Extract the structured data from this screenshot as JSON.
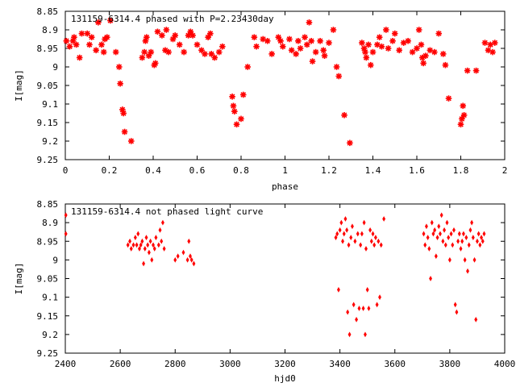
{
  "colors": {
    "points": "#ff0000",
    "axes": "#000000",
    "background": "#ffffff"
  },
  "chart_data": [
    {
      "type": "scatter",
      "title": "131159-6314.4 phased with P=2.23430day",
      "xlabel": "phase",
      "ylabel": "I[mag]",
      "xlim": [
        0,
        2
      ],
      "ylim": [
        8.85,
        9.25
      ],
      "y_inverted": true,
      "grid": false,
      "marker": "asterisk",
      "x_ticks": [
        0,
        0.2,
        0.4,
        0.6,
        0.8,
        1,
        1.2,
        1.4,
        1.6,
        1.8,
        2
      ],
      "x_tick_labels": [
        "0",
        "0.2",
        "0.4",
        "0.6",
        "0.8",
        "1",
        "1.2",
        "1.4",
        "1.6",
        "1.8",
        "2"
      ],
      "y_ticks": [
        8.85,
        8.9,
        8.95,
        9,
        9.05,
        9.1,
        9.15,
        9.2,
        9.25
      ],
      "y_tick_labels": [
        "8.85",
        "8.9",
        "8.95",
        "9",
        "9.05",
        "9.1",
        "9.15",
        "9.2",
        "9.25"
      ],
      "points": [
        [
          0.005,
          8.93
        ],
        [
          0.02,
          8.945
        ],
        [
          0.035,
          8.93
        ],
        [
          0.04,
          8.92
        ],
        [
          0.05,
          8.94
        ],
        [
          0.065,
          8.975
        ],
        [
          0.075,
          8.91
        ],
        [
          0.1,
          8.91
        ],
        [
          0.11,
          8.94
        ],
        [
          0.12,
          8.92
        ],
        [
          0.14,
          8.955
        ],
        [
          0.15,
          8.88
        ],
        [
          0.165,
          8.94
        ],
        [
          0.175,
          8.96
        ],
        [
          0.18,
          8.925
        ],
        [
          0.19,
          8.92
        ],
        [
          0.205,
          8.875
        ],
        [
          0.23,
          8.96
        ],
        [
          0.245,
          9.0
        ],
        [
          0.25,
          9.045
        ],
        [
          0.26,
          9.115
        ],
        [
          0.265,
          9.125
        ],
        [
          0.27,
          9.175
        ],
        [
          0.3,
          9.2
        ],
        [
          0.35,
          8.975
        ],
        [
          0.36,
          8.96
        ],
        [
          0.365,
          8.93
        ],
        [
          0.37,
          8.92
        ],
        [
          0.38,
          8.97
        ],
        [
          0.39,
          8.96
        ],
        [
          0.405,
          8.995
        ],
        [
          0.41,
          8.99
        ],
        [
          0.42,
          8.905
        ],
        [
          0.44,
          8.915
        ],
        [
          0.455,
          8.955
        ],
        [
          0.46,
          8.9
        ],
        [
          0.47,
          8.96
        ],
        [
          0.49,
          8.925
        ],
        [
          0.5,
          8.915
        ],
        [
          0.52,
          8.94
        ],
        [
          0.54,
          8.96
        ],
        [
          0.56,
          8.915
        ],
        [
          0.57,
          8.905
        ],
        [
          0.58,
          8.915
        ],
        [
          0.6,
          8.94
        ],
        [
          0.62,
          8.955
        ],
        [
          0.635,
          8.965
        ],
        [
          0.65,
          8.92
        ],
        [
          0.66,
          8.91
        ],
        [
          0.665,
          8.965
        ],
        [
          0.68,
          8.975
        ],
        [
          0.7,
          8.96
        ],
        [
          0.715,
          8.945
        ],
        [
          0.76,
          9.08
        ],
        [
          0.765,
          9.105
        ],
        [
          0.77,
          9.12
        ],
        [
          0.78,
          9.155
        ],
        [
          0.8,
          9.14
        ],
        [
          0.81,
          9.075
        ],
        [
          0.83,
          9.0
        ],
        [
          0.86,
          8.92
        ],
        [
          0.87,
          8.945
        ],
        [
          0.9,
          8.925
        ],
        [
          0.92,
          8.93
        ],
        [
          0.94,
          8.965
        ],
        [
          0.97,
          8.92
        ],
        [
          0.98,
          8.93
        ],
        [
          0.99,
          8.945
        ],
        [
          1.02,
          8.925
        ],
        [
          1.03,
          8.955
        ],
        [
          1.05,
          8.965
        ],
        [
          1.06,
          8.93
        ],
        [
          1.07,
          8.95
        ],
        [
          1.09,
          8.92
        ],
        [
          1.1,
          8.94
        ],
        [
          1.11,
          8.88
        ],
        [
          1.12,
          8.93
        ],
        [
          1.125,
          8.985
        ],
        [
          1.14,
          8.96
        ],
        [
          1.16,
          8.93
        ],
        [
          1.175,
          8.955
        ],
        [
          1.18,
          8.97
        ],
        [
          1.2,
          8.935
        ],
        [
          1.22,
          8.9
        ],
        [
          1.235,
          9.0
        ],
        [
          1.245,
          9.025
        ],
        [
          1.27,
          9.13
        ],
        [
          1.295,
          9.205
        ],
        [
          1.35,
          8.935
        ],
        [
          1.36,
          8.95
        ],
        [
          1.365,
          8.96
        ],
        [
          1.37,
          8.975
        ],
        [
          1.38,
          8.94
        ],
        [
          1.39,
          8.995
        ],
        [
          1.4,
          8.96
        ],
        [
          1.42,
          8.94
        ],
        [
          1.43,
          8.92
        ],
        [
          1.44,
          8.945
        ],
        [
          1.46,
          8.9
        ],
        [
          1.47,
          8.95
        ],
        [
          1.49,
          8.93
        ],
        [
          1.5,
          8.91
        ],
        [
          1.52,
          8.955
        ],
        [
          1.54,
          8.935
        ],
        [
          1.56,
          8.93
        ],
        [
          1.58,
          8.96
        ],
        [
          1.6,
          8.95
        ],
        [
          1.61,
          8.9
        ],
        [
          1.62,
          8.94
        ],
        [
          1.625,
          8.975
        ],
        [
          1.63,
          8.99
        ],
        [
          1.64,
          8.97
        ],
        [
          1.66,
          8.955
        ],
        [
          1.68,
          8.96
        ],
        [
          1.7,
          8.91
        ],
        [
          1.72,
          8.965
        ],
        [
          1.73,
          8.995
        ],
        [
          1.745,
          9.085
        ],
        [
          1.8,
          9.155
        ],
        [
          1.805,
          9.14
        ],
        [
          1.81,
          9.105
        ],
        [
          1.815,
          9.13
        ],
        [
          1.83,
          9.01
        ],
        [
          1.87,
          9.01
        ],
        [
          1.91,
          8.935
        ],
        [
          1.925,
          8.955
        ],
        [
          1.935,
          8.94
        ],
        [
          1.945,
          8.96
        ],
        [
          1.955,
          8.935
        ]
      ]
    },
    {
      "type": "scatter",
      "title": "131159-6314.4 not phased light curve",
      "xlabel": "hjd0",
      "ylabel": "I[mag]",
      "xlim": [
        2400,
        4000
      ],
      "ylim": [
        8.85,
        9.25
      ],
      "y_inverted": true,
      "grid": false,
      "marker": "diamond",
      "x_ticks": [
        2400,
        2600,
        2800,
        3000,
        3200,
        3400,
        3600,
        3800,
        4000
      ],
      "x_tick_labels": [
        "2400",
        "2600",
        "2800",
        "3000",
        "3200",
        "3400",
        "3600",
        "3800",
        "4000"
      ],
      "y_ticks": [
        8.85,
        8.9,
        8.95,
        9,
        9.05,
        9.1,
        9.15,
        9.2,
        9.25
      ],
      "y_tick_labels": [
        "8.85",
        "8.9",
        "8.95",
        "9",
        "9.05",
        "9.1",
        "9.15",
        "9.2",
        "9.25"
      ],
      "points": [
        [
          2402,
          8.88
        ],
        [
          2402,
          8.93
        ],
        [
          2628,
          8.96
        ],
        [
          2635,
          8.95
        ],
        [
          2640,
          8.97
        ],
        [
          2648,
          8.96
        ],
        [
          2655,
          8.94
        ],
        [
          2660,
          8.96
        ],
        [
          2665,
          8.93
        ],
        [
          2670,
          8.97
        ],
        [
          2675,
          8.96
        ],
        [
          2680,
          8.95
        ],
        [
          2685,
          9.01
        ],
        [
          2690,
          8.97
        ],
        [
          2695,
          8.94
        ],
        [
          2700,
          8.96
        ],
        [
          2705,
          8.98
        ],
        [
          2710,
          8.95
        ],
        [
          2715,
          9.0
        ],
        [
          2720,
          8.96
        ],
        [
          2725,
          8.97
        ],
        [
          2730,
          8.94
        ],
        [
          2740,
          8.96
        ],
        [
          2745,
          8.92
        ],
        [
          2750,
          8.95
        ],
        [
          2755,
          8.9
        ],
        [
          2760,
          8.97
        ],
        [
          2800,
          9.0
        ],
        [
          2810,
          8.99
        ],
        [
          2830,
          8.98
        ],
        [
          2845,
          9.0
        ],
        [
          2850,
          8.95
        ],
        [
          2855,
          8.99
        ],
        [
          2860,
          9.0
        ],
        [
          2868,
          9.01
        ],
        [
          3385,
          8.94
        ],
        [
          3390,
          8.93
        ],
        [
          3395,
          9.08
        ],
        [
          3400,
          8.92
        ],
        [
          3405,
          8.9
        ],
        [
          3410,
          8.95
        ],
        [
          3415,
          8.93
        ],
        [
          3420,
          8.89
        ],
        [
          3425,
          8.92
        ],
        [
          3428,
          9.14
        ],
        [
          3432,
          8.96
        ],
        [
          3435,
          9.2
        ],
        [
          3440,
          8.94
        ],
        [
          3445,
          8.91
        ],
        [
          3450,
          9.12
        ],
        [
          3455,
          8.95
        ],
        [
          3460,
          9.16
        ],
        [
          3465,
          8.93
        ],
        [
          3470,
          9.13
        ],
        [
          3475,
          8.96
        ],
        [
          3480,
          8.93
        ],
        [
          3485,
          9.13
        ],
        [
          3488,
          8.9
        ],
        [
          3492,
          9.2
        ],
        [
          3495,
          8.97
        ],
        [
          3500,
          9.08
        ],
        [
          3505,
          9.13
        ],
        [
          3510,
          8.92
        ],
        [
          3515,
          8.95
        ],
        [
          3520,
          8.93
        ],
        [
          3525,
          8.96
        ],
        [
          3530,
          8.94
        ],
        [
          3535,
          9.12
        ],
        [
          3540,
          8.95
        ],
        [
          3545,
          9.1
        ],
        [
          3550,
          8.96
        ],
        [
          3560,
          8.89
        ],
        [
          3705,
          8.93
        ],
        [
          3710,
          8.96
        ],
        [
          3715,
          8.91
        ],
        [
          3720,
          8.94
        ],
        [
          3725,
          8.97
        ],
        [
          3730,
          9.05
        ],
        [
          3735,
          8.9
        ],
        [
          3740,
          8.93
        ],
        [
          3745,
          8.92
        ],
        [
          3750,
          8.99
        ],
        [
          3755,
          8.94
        ],
        [
          3760,
          8.91
        ],
        [
          3765,
          8.93
        ],
        [
          3770,
          8.88
        ],
        [
          3775,
          8.95
        ],
        [
          3780,
          8.92
        ],
        [
          3785,
          8.96
        ],
        [
          3790,
          8.9
        ],
        [
          3795,
          8.94
        ],
        [
          3800,
          9.0
        ],
        [
          3805,
          8.93
        ],
        [
          3810,
          8.96
        ],
        [
          3815,
          8.92
        ],
        [
          3820,
          9.12
        ],
        [
          3825,
          9.14
        ],
        [
          3830,
          8.95
        ],
        [
          3835,
          8.93
        ],
        [
          3840,
          8.97
        ],
        [
          3845,
          8.95
        ],
        [
          3850,
          8.93
        ],
        [
          3855,
          9.0
        ],
        [
          3860,
          8.94
        ],
        [
          3865,
          9.03
        ],
        [
          3870,
          8.96
        ],
        [
          3875,
          8.92
        ],
        [
          3880,
          8.9
        ],
        [
          3885,
          8.94
        ],
        [
          3890,
          9.0
        ],
        [
          3895,
          9.16
        ],
        [
          3900,
          8.95
        ],
        [
          3905,
          8.93
        ],
        [
          3910,
          8.96
        ],
        [
          3915,
          8.94
        ],
        [
          3920,
          8.95
        ],
        [
          3925,
          8.93
        ]
      ]
    }
  ]
}
